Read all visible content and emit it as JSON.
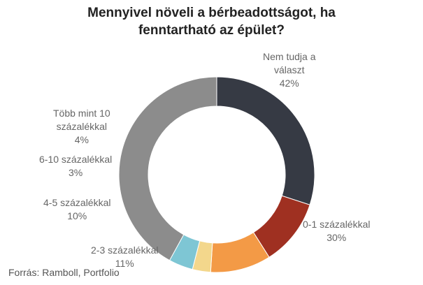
{
  "chart_data": {
    "type": "pie",
    "variant": "donut",
    "title": "Mennyivel növeli a bérbeadottságot, ha fenntartható az épület?",
    "title_lines": [
      "Mennyivel növeli a bérbeadottságot, ha",
      "fenntartható az épület?"
    ],
    "slices": [
      {
        "label": "0-1 százalékkal",
        "label_lines": [
          "0-1 százalékkal"
        ],
        "value": 30,
        "value_label": "30%",
        "color": "#363a44"
      },
      {
        "label": "2-3 százalékkal",
        "label_lines": [
          "2-3 százalékkal"
        ],
        "value": 11,
        "value_label": "11%",
        "color": "#9f3021"
      },
      {
        "label": "4-5 százalékkal",
        "label_lines": [
          "4-5 százalékkal"
        ],
        "value": 10,
        "value_label": "10%",
        "color": "#f39a46"
      },
      {
        "label": "6-10 százalékkal",
        "label_lines": [
          "6-10 százalékkal"
        ],
        "value": 3,
        "value_label": "3%",
        "color": "#f3d78c"
      },
      {
        "label": "Több mint 10 százalékkal",
        "label_lines": [
          "Több mint 10",
          "százalékkal"
        ],
        "value": 4,
        "value_label": "4%",
        "color": "#7ec6d4"
      },
      {
        "label": "Nem tudja a választ",
        "label_lines": [
          "Nem tudja a",
          "választ"
        ],
        "value": 42,
        "value_label": "42%",
        "color": "#8c8c8c"
      }
    ]
  },
  "source": "Forrás: Ramboll, Portfolio"
}
